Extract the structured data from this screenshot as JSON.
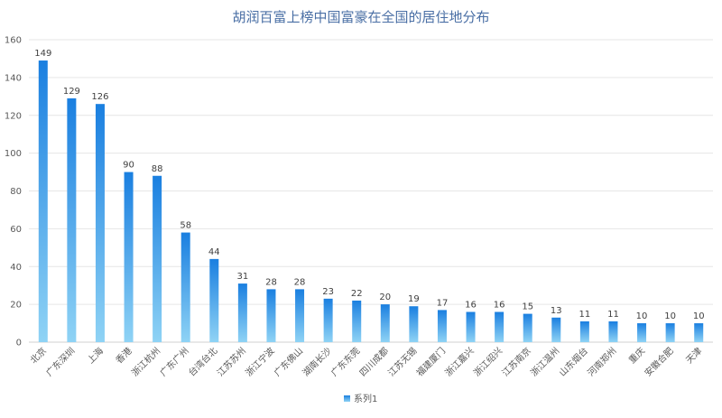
{
  "chart_data": {
    "type": "bar",
    "title": "胡润百富上榜中国富豪在全国的居住地分布",
    "categories": [
      "北京",
      "广东深圳",
      "上海",
      "香港",
      "浙江杭州",
      "广东广州",
      "台湾台北",
      "江苏苏州",
      "浙江宁波",
      "广东佛山",
      "湖南长沙",
      "广东东莞",
      "四川成都",
      "江苏无锡",
      "福建厦门",
      "浙江嘉兴",
      "浙江绍兴",
      "江苏南京",
      "浙江温州",
      "山东烟台",
      "河南郑州",
      "重庆",
      "安徽合肥",
      "天津"
    ],
    "series": [
      {
        "name": "系列1",
        "values": [
          149,
          129,
          126,
          90,
          88,
          58,
          44,
          31,
          28,
          28,
          23,
          22,
          20,
          19,
          17,
          16,
          16,
          15,
          13,
          11,
          11,
          10,
          10,
          10
        ]
      }
    ],
    "y_ticks": [
      "0",
      "20",
      "40",
      "60",
      "80",
      "100",
      "120",
      "140",
      "160"
    ],
    "ylim": [
      0,
      160
    ],
    "grid": true,
    "legend": "bottom",
    "bar_color_top": "#1a7fe0",
    "bar_color_bottom": "#8fd3f5"
  }
}
